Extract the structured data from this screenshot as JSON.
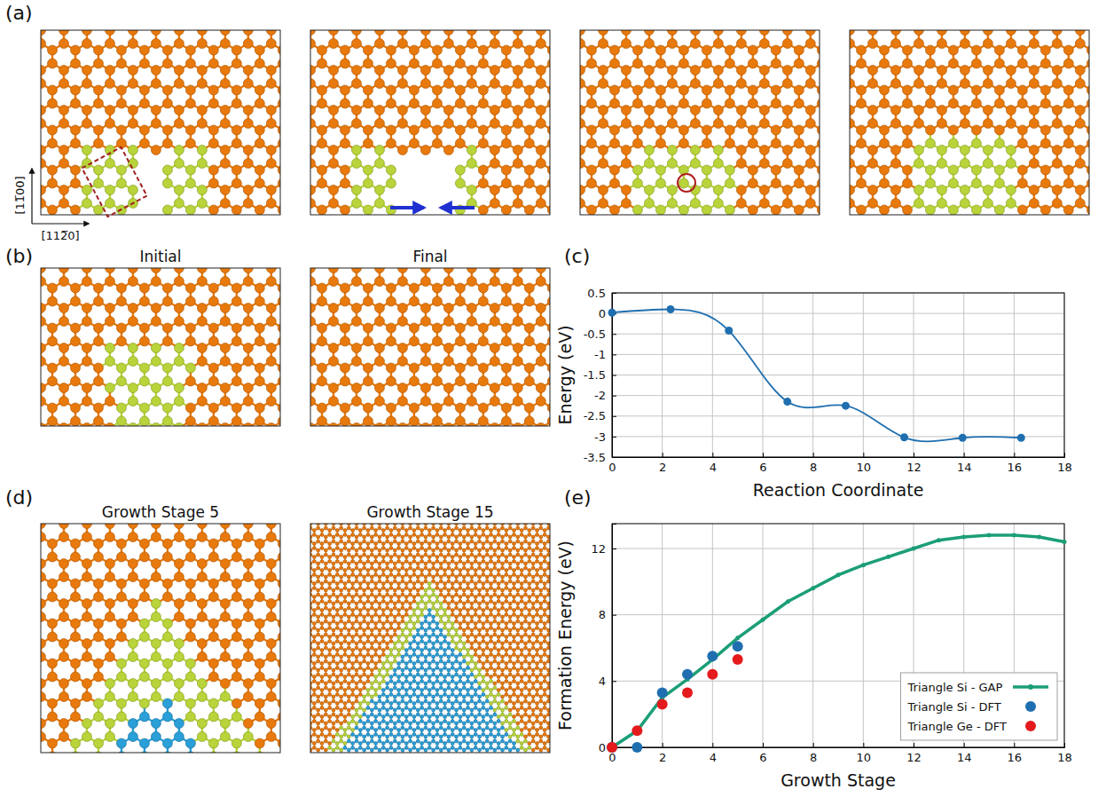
{
  "panels": {
    "a": {
      "label": "(a)",
      "direction_labels": [
        "[11̅00]",
        "[112̅0]"
      ]
    },
    "b": {
      "label": "(b)",
      "titles": [
        "Initial",
        "Final"
      ]
    },
    "c": {
      "label": "(c)"
    },
    "d": {
      "label": "(d)",
      "titles": [
        "Growth Stage 5",
        "Growth Stage 15"
      ]
    },
    "e": {
      "label": "(e)"
    }
  },
  "chart_data": [
    {
      "type": "line",
      "x_label": "Reaction Coordinate",
      "y_label": "Energy (eV)",
      "x": [
        0,
        2.33,
        4.65,
        6.98,
        9.3,
        11.63,
        13.95,
        16.28
      ],
      "values": [
        0.02,
        0.1,
        -0.42,
        -2.15,
        -2.25,
        -3.02,
        -3.03,
        -3.03
      ],
      "color": "#1f6fb0",
      "marker": "circle",
      "line_style": "smooth",
      "xlim": [
        0,
        18
      ],
      "ylim": [
        -3.5,
        0.5
      ],
      "xticks": [
        0,
        2,
        4,
        6,
        8,
        10,
        12,
        14,
        16,
        18
      ],
      "yticks": [
        -3.5,
        -3,
        -2.5,
        -2,
        -1.5,
        -1,
        -0.5,
        0,
        0.5
      ],
      "grid": true
    },
    {
      "type": "line",
      "x_label": "Growth Stage",
      "y_label": "Formation Energy (eV)",
      "series": [
        {
          "name": "Triangle Si - GAP",
          "type": "line",
          "color": "#1b9e77",
          "marker": "circle",
          "line_style": "solid",
          "x": [
            0,
            1,
            2,
            3,
            4,
            5,
            6,
            7,
            8,
            9,
            10,
            11,
            12,
            13,
            14,
            15,
            16,
            17,
            18
          ],
          "values": [
            0,
            1.0,
            3.0,
            4.1,
            5.3,
            6.6,
            7.7,
            8.8,
            9.6,
            10.4,
            11.0,
            11.5,
            12.0,
            12.5,
            12.7,
            12.8,
            12.8,
            12.7,
            12.4
          ]
        },
        {
          "name": "Triangle Si - DFT",
          "type": "scatter",
          "color": "#1f6fb0",
          "marker": "circle",
          "x": [
            0,
            1,
            2,
            3,
            4,
            5
          ],
          "values": [
            0,
            0.0,
            3.3,
            4.4,
            5.5,
            6.1
          ]
        },
        {
          "name": "Triangle Ge - DFT",
          "type": "scatter",
          "color": "#e41a1c",
          "marker": "circle",
          "x": [
            0,
            1,
            2,
            3,
            4,
            5
          ],
          "values": [
            0,
            1.0,
            2.6,
            3.3,
            4.4,
            5.3
          ]
        }
      ],
      "xlim": [
        0,
        18
      ],
      "ylim": [
        0,
        13.5
      ],
      "xticks": [
        0,
        2,
        4,
        6,
        8,
        10,
        12,
        14,
        16,
        18
      ],
      "yticks": [
        0,
        4,
        8,
        12
      ],
      "grid": true,
      "legend": "lower right"
    }
  ]
}
